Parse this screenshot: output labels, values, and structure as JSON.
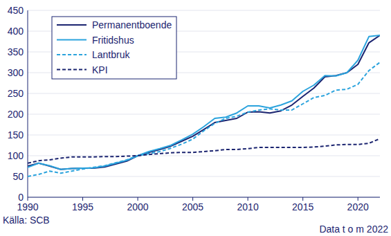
{
  "chart_data": {
    "type": "line",
    "x": [
      1990,
      1991,
      1992,
      1993,
      1994,
      1995,
      1996,
      1997,
      1998,
      1999,
      2000,
      2001,
      2002,
      2003,
      2004,
      2005,
      2006,
      2007,
      2008,
      2009,
      2010,
      2011,
      2012,
      2013,
      2014,
      2015,
      2016,
      2017,
      2018,
      2019,
      2020,
      2021,
      2022
    ],
    "series": [
      {
        "name": "Permanentboende",
        "color": "#1b2470",
        "line_style": "solid",
        "values": [
          75,
          82,
          75,
          67,
          69,
          70,
          70,
          73,
          80,
          87,
          100,
          108,
          115,
          123,
          135,
          147,
          163,
          180,
          185,
          190,
          205,
          206,
          203,
          208,
          222,
          243,
          263,
          290,
          293,
          300,
          320,
          372,
          390
        ]
      },
      {
        "name": "Fritidshus",
        "color": "#2ba3dd",
        "line_style": "solid",
        "values": [
          72,
          82,
          76,
          67,
          69,
          70,
          71,
          75,
          82,
          89,
          100,
          110,
          117,
          125,
          138,
          152,
          170,
          190,
          193,
          203,
          220,
          220,
          215,
          222,
          232,
          255,
          270,
          293,
          292,
          300,
          330,
          387,
          390
        ]
      },
      {
        "name": "Lantbruk",
        "color": "#2ba3dd",
        "line_style": "dashed",
        "values": [
          50,
          55,
          63,
          58,
          63,
          68,
          72,
          76,
          83,
          90,
          100,
          105,
          110,
          118,
          128,
          140,
          160,
          178,
          190,
          195,
          205,
          210,
          213,
          210,
          210,
          225,
          240,
          245,
          258,
          260,
          272,
          305,
          325
        ]
      },
      {
        "name": "KPI",
        "color": "#1b2470",
        "line_style": "dashed",
        "values": [
          82,
          88,
          90,
          94,
          97,
          97,
          97,
          98,
          98,
          99,
          100,
          103,
          105,
          107,
          108,
          108,
          110,
          112,
          115,
          115,
          117,
          120,
          120,
          120,
          120,
          120,
          121,
          123,
          126,
          127,
          127,
          130,
          141
        ]
      }
    ],
    "xlim": [
      1990,
      2022
    ],
    "xticks": [
      1990,
      1995,
      2000,
      2005,
      2010,
      2015,
      2020
    ],
    "ylim": [
      0,
      450
    ],
    "yticks": [
      0,
      50,
      100,
      150,
      200,
      250,
      300,
      350,
      400,
      450
    ],
    "grid": true,
    "legend": "top-left",
    "annotations": [
      "Källa: SCB",
      "Data t o m 2022"
    ]
  }
}
